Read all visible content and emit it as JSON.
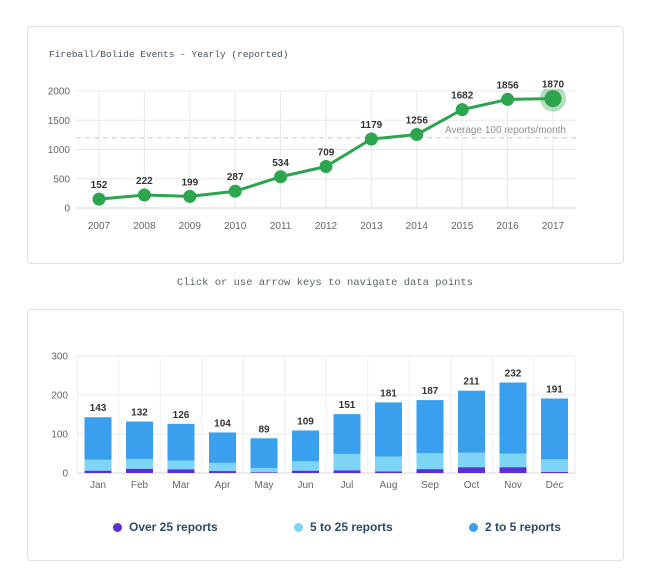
{
  "page": {
    "instruction_text": "Click or use arrow keys to navigate data points"
  },
  "chart_data": [
    {
      "type": "line",
      "title": "Fireball/Bolide Events - Yearly (reported)",
      "x": [
        "2007",
        "2008",
        "2009",
        "2010",
        "2011",
        "2012",
        "2013",
        "2014",
        "2015",
        "2016",
        "2017"
      ],
      "values": [
        152,
        222,
        199,
        287,
        534,
        709,
        1179,
        1256,
        1682,
        1856,
        1870
      ],
      "ylim": [
        0,
        2000
      ],
      "yticks": [
        0,
        500,
        1000,
        1500,
        2000
      ],
      "grid": true,
      "legend_position": "none",
      "line_color": "#2da44e",
      "selected_index": 10,
      "selected_point": "2017",
      "plot_line": {
        "value": 1200,
        "label": "Average 100 reports/month",
        "style": "dashed",
        "color": "#c9c9c9",
        "label_color": "#8f8f8f"
      }
    },
    {
      "type": "bar",
      "stacked": true,
      "categories": [
        "Jan",
        "Feb",
        "Mar",
        "Apr",
        "May",
        "Jun",
        "Jul",
        "Aug",
        "Sep",
        "Oct",
        "Nov",
        "Dec"
      ],
      "series": [
        {
          "name": "Over 25 reports",
          "color": "#5c2ed6",
          "values": [
            6,
            11,
            9,
            5,
            2,
            6,
            7,
            4,
            10,
            15,
            15,
            3
          ]
        },
        {
          "name": "5 to 25 reports",
          "color": "#7dd4f5",
          "values": [
            28,
            25,
            23,
            21,
            11,
            24,
            42,
            38,
            41,
            37,
            35,
            32
          ]
        },
        {
          "name": "2 to 5 reports",
          "color": "#3aa0ee",
          "values": [
            109,
            96,
            94,
            78,
            76,
            79,
            102,
            139,
            136,
            159,
            182,
            156
          ]
        }
      ],
      "totals": [
        143,
        132,
        126,
        104,
        89,
        109,
        151,
        181,
        187,
        211,
        232,
        191
      ],
      "ylim": [
        0,
        300
      ],
      "yticks": [
        0,
        100,
        200,
        300
      ],
      "grid": true,
      "legend_position": "bottom"
    }
  ]
}
